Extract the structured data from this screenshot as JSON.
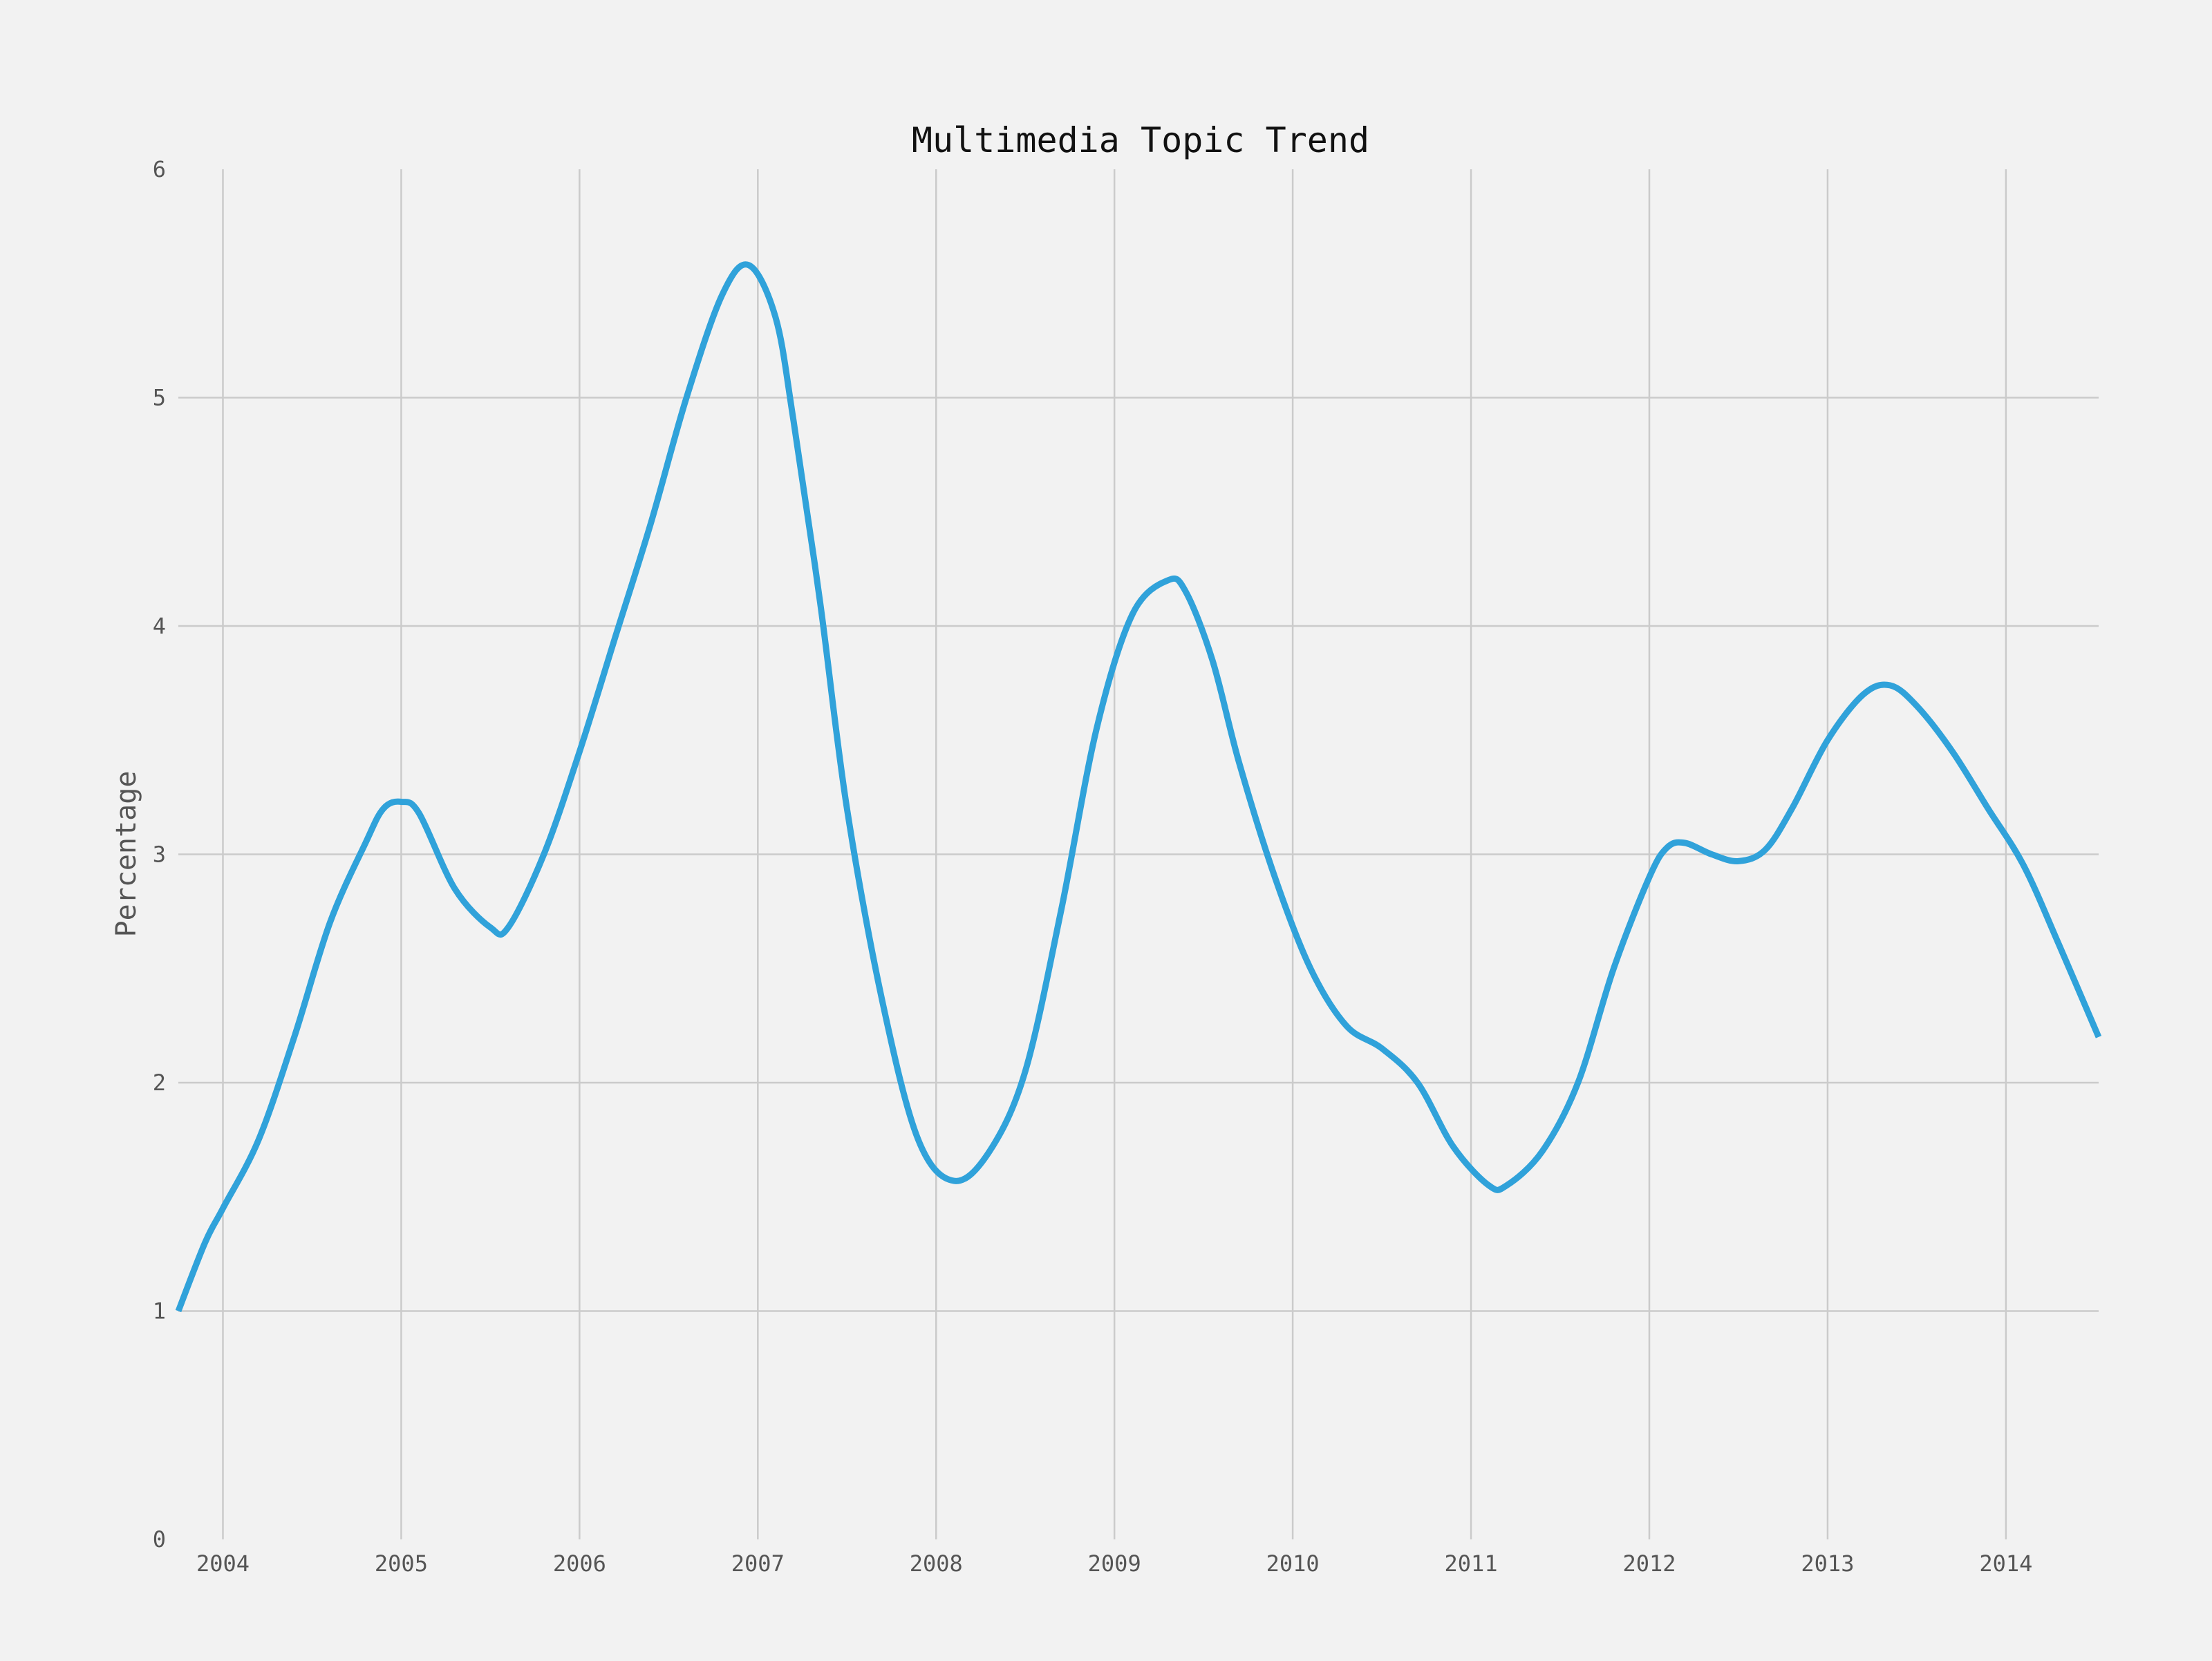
{
  "chart_data": {
    "type": "line",
    "title": "Multimedia Topic Trend",
    "xlabel": "",
    "ylabel": "Percentage",
    "x_tick_labels": [
      "2004",
      "2005",
      "2006",
      "2007",
      "2008",
      "2009",
      "2010",
      "2011",
      "2012",
      "2013",
      "2014"
    ],
    "y_tick_labels": [
      "0",
      "1",
      "2",
      "3",
      "4",
      "5",
      "6"
    ],
    "xlim": [
      2003.75,
      2014.52
    ],
    "ylim": [
      0,
      6
    ],
    "grid": true,
    "series": [
      {
        "color": "#30a2da",
        "points": [
          [
            2003.75,
            1.0
          ],
          [
            2003.9,
            1.3
          ],
          [
            2004.0,
            1.45
          ],
          [
            2004.2,
            1.75
          ],
          [
            2004.4,
            2.2
          ],
          [
            2004.6,
            2.7
          ],
          [
            2004.8,
            3.05
          ],
          [
            2004.9,
            3.2
          ],
          [
            2005.0,
            3.23
          ],
          [
            2005.1,
            3.18
          ],
          [
            2005.3,
            2.85
          ],
          [
            2005.5,
            2.68
          ],
          [
            2005.6,
            2.68
          ],
          [
            2005.8,
            3.0
          ],
          [
            2006.0,
            3.45
          ],
          [
            2006.2,
            3.95
          ],
          [
            2006.4,
            4.45
          ],
          [
            2006.6,
            5.0
          ],
          [
            2006.8,
            5.45
          ],
          [
            2006.95,
            5.58
          ],
          [
            2007.1,
            5.35
          ],
          [
            2007.2,
            4.9
          ],
          [
            2007.35,
            4.1
          ],
          [
            2007.5,
            3.2
          ],
          [
            2007.7,
            2.35
          ],
          [
            2007.9,
            1.75
          ],
          [
            2008.1,
            1.57
          ],
          [
            2008.3,
            1.7
          ],
          [
            2008.5,
            2.05
          ],
          [
            2008.7,
            2.75
          ],
          [
            2008.9,
            3.55
          ],
          [
            2009.1,
            4.05
          ],
          [
            2009.3,
            4.2
          ],
          [
            2009.4,
            4.15
          ],
          [
            2009.55,
            3.85
          ],
          [
            2009.7,
            3.4
          ],
          [
            2009.9,
            2.9
          ],
          [
            2010.1,
            2.5
          ],
          [
            2010.3,
            2.25
          ],
          [
            2010.5,
            2.15
          ],
          [
            2010.7,
            2.0
          ],
          [
            2010.9,
            1.72
          ],
          [
            2011.1,
            1.55
          ],
          [
            2011.2,
            1.55
          ],
          [
            2011.4,
            1.7
          ],
          [
            2011.6,
            2.0
          ],
          [
            2011.8,
            2.5
          ],
          [
            2012.0,
            2.9
          ],
          [
            2012.1,
            3.03
          ],
          [
            2012.2,
            3.05
          ],
          [
            2012.35,
            3.0
          ],
          [
            2012.5,
            2.97
          ],
          [
            2012.65,
            3.02
          ],
          [
            2012.8,
            3.2
          ],
          [
            2013.0,
            3.5
          ],
          [
            2013.2,
            3.7
          ],
          [
            2013.35,
            3.74
          ],
          [
            2013.5,
            3.65
          ],
          [
            2013.7,
            3.45
          ],
          [
            2013.9,
            3.2
          ],
          [
            2014.1,
            2.95
          ],
          [
            2014.3,
            2.6
          ],
          [
            2014.52,
            2.2
          ]
        ]
      }
    ]
  }
}
